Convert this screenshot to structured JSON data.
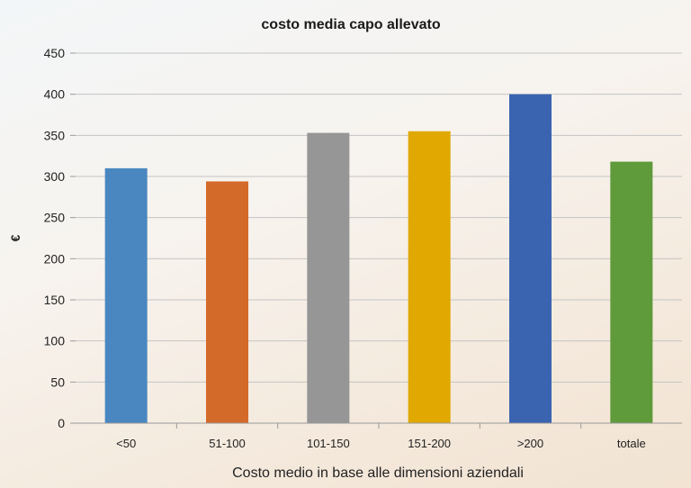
{
  "chart_data": {
    "type": "bar",
    "title": "costo media capo allevato",
    "xlabel": "Costo medio in base alle dimensioni aziendali",
    "ylabel": "€",
    "categories": [
      "<50",
      "51-100",
      "101-150",
      "151-200",
      ">200",
      "totale"
    ],
    "values": [
      310,
      294,
      353,
      355,
      400,
      318
    ],
    "colors": [
      "#4a87c0",
      "#d46a2a",
      "#969696",
      "#e0a800",
      "#3a64b0",
      "#5f9a3b"
    ],
    "ylim": [
      0,
      450
    ],
    "yticks": [
      "0",
      "50",
      "100",
      "150",
      "200",
      "250",
      "300",
      "350",
      "400",
      "450"
    ],
    "grid": true,
    "legend": "none"
  }
}
